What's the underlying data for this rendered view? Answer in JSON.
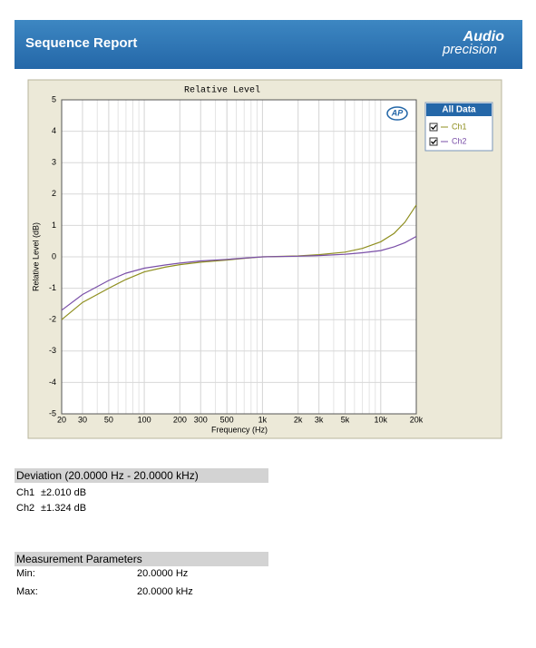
{
  "header": {
    "title": "Sequence Report",
    "logo": [
      "Audio",
      "precision"
    ]
  },
  "chart_data": {
    "type": "line",
    "title": "Relative Level",
    "badge": "AP",
    "x_label": "Frequency (Hz)",
    "y_label": "Relative Level (dB)",
    "x_scale": "log",
    "grid": true,
    "legend": {
      "title": "All Data",
      "position": "right"
    },
    "xlim": [
      20,
      20000
    ],
    "ylim": [
      -5,
      5
    ],
    "xticks": [
      20,
      30,
      50,
      100,
      200,
      300,
      500,
      {
        "value": 1000,
        "label": "1k"
      },
      {
        "value": 2000,
        "label": "2k"
      },
      {
        "value": 3000,
        "label": "3k"
      },
      {
        "value": 5000,
        "label": "5k"
      },
      {
        "value": 10000,
        "label": "10k"
      },
      {
        "value": 20000,
        "label": "20k"
      }
    ],
    "yticks": [
      -5,
      -4,
      -3,
      -2,
      -1,
      0,
      1,
      2,
      3,
      4,
      5
    ],
    "x": [
      20,
      30,
      50,
      70,
      100,
      150,
      200,
      300,
      500,
      700,
      1000,
      2000,
      3000,
      5000,
      7000,
      10000,
      13000,
      16000,
      20000
    ],
    "series": [
      {
        "name": "Ch1",
        "color": "#8f8f1f",
        "values": [
          -2.0,
          -1.45,
          -1.0,
          -0.72,
          -0.48,
          -0.33,
          -0.25,
          -0.17,
          -0.1,
          -0.05,
          0,
          0.03,
          0.07,
          0.15,
          0.27,
          0.48,
          0.75,
          1.1,
          1.65
        ]
      },
      {
        "name": "Ch2",
        "color": "#7a4fa8",
        "values": [
          -1.7,
          -1.2,
          -0.75,
          -0.52,
          -0.36,
          -0.26,
          -0.2,
          -0.13,
          -0.08,
          -0.04,
          0,
          0.02,
          0.04,
          0.08,
          0.13,
          0.2,
          0.32,
          0.45,
          0.65
        ]
      }
    ]
  },
  "deviation": {
    "title": "Deviation (20.0000 Hz - 20.0000 kHz)",
    "rows": [
      [
        "Ch1",
        "±2.010 dB"
      ],
      [
        "Ch2",
        "±1.324 dB"
      ]
    ]
  },
  "parameters": {
    "title": "Measurement Parameters",
    "rows": [
      [
        "Min:",
        "20.0000 Hz"
      ],
      [
        "Max:",
        "20.0000 kHz"
      ]
    ]
  }
}
